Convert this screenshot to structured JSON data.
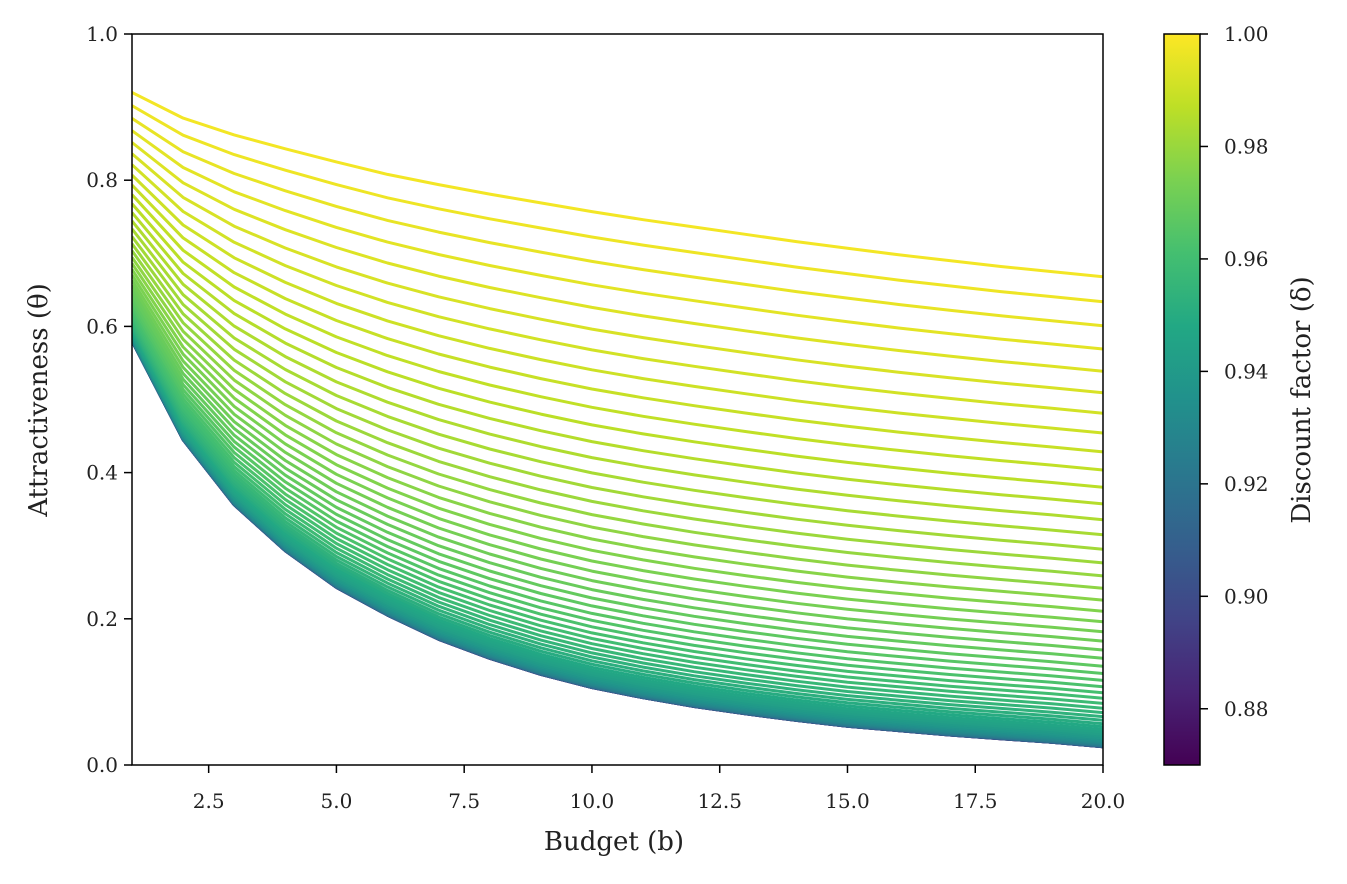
{
  "chart_data": {
    "type": "line",
    "title": "",
    "xlabel": "Budget (b)",
    "ylabel": "Attractiveness (θ)",
    "xlim": [
      1,
      20
    ],
    "ylim": [
      0,
      1
    ],
    "xticks": [
      "2.5",
      "5.0",
      "7.5",
      "10.0",
      "12.5",
      "15.0",
      "17.5",
      "20.0"
    ],
    "yticks": [
      "0.0",
      "0.2",
      "0.4",
      "0.6",
      "0.8",
      "1.0"
    ],
    "grid": false,
    "x": [
      1,
      2,
      3,
      4,
      5,
      6,
      7,
      8,
      9,
      10,
      11,
      12,
      13,
      14,
      15,
      16,
      17,
      18,
      19,
      20
    ],
    "series_count": 60,
    "series_description": "One line per discount factor δ from 0.87 to 1.00; θ(b) approximately 0.5·(δ/(1−δ))/(b + δ/(1−δ)) + small offset; lines colored by δ on viridis scale",
    "series_sample": [
      {
        "delta": 0.998,
        "values": [
          0.92,
          0.885,
          0.862,
          0.843,
          0.825,
          0.808,
          0.794,
          0.781,
          0.769,
          0.757,
          0.746,
          0.736,
          0.726,
          0.716,
          0.707,
          0.698,
          0.69,
          0.682,
          0.675,
          0.668
        ]
      },
      {
        "delta": 0.87,
        "values": [
          0.58,
          0.445,
          0.356,
          0.293,
          0.243,
          0.205,
          0.172,
          0.146,
          0.124,
          0.106,
          0.092,
          0.08,
          0.07,
          0.061,
          0.053,
          0.047,
          0.041,
          0.036,
          0.031,
          0.025
        ]
      }
    ],
    "colorbar": {
      "label": "Discount factor (δ)",
      "range": [
        0.87,
        1.0
      ],
      "ticks": [
        "0.88",
        "0.90",
        "0.92",
        "0.94",
        "0.96",
        "0.98",
        "1.00"
      ],
      "colormap": "viridis"
    }
  }
}
